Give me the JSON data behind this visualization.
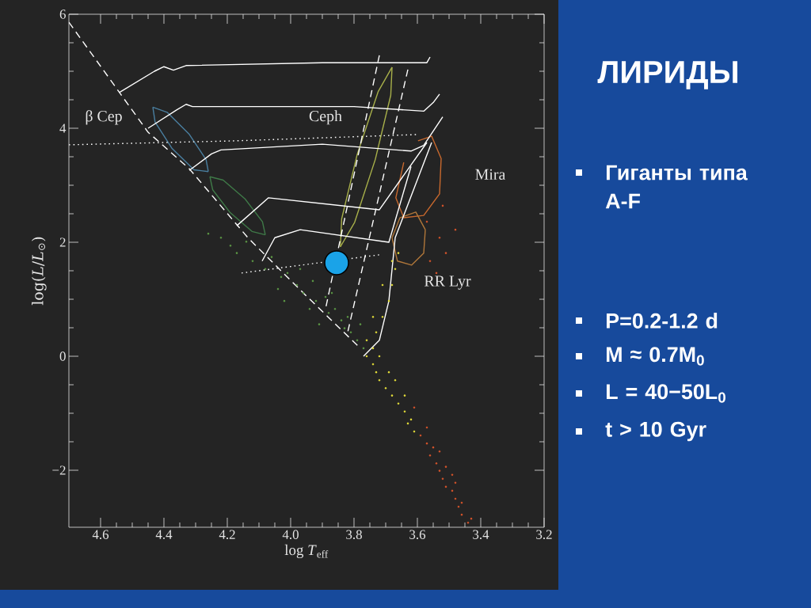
{
  "chart_data": {
    "type": "line",
    "title": "ЛИРИДЫ",
    "xlabel": "log *T*$_{eff}$",
    "ylabel": "log(*L*/*L*$_{⊙}$)",
    "xlim": [
      4.7,
      3.2
    ],
    "ylim": [
      -3,
      6
    ],
    "xticks": [
      4.6,
      4.4,
      4.2,
      {
        "value": 4.0,
        "label": "4.0"
      },
      3.8,
      3.6,
      3.4,
      3.2
    ],
    "yticks": [
      {
        "value": -2,
        "label": "−2"
      },
      0,
      2,
      4,
      6
    ],
    "series": [
      {
        "color": "#4a7fa0",
        "x": [
          4.26,
          4.267,
          4.321,
          4.39,
          4.435
        ],
        "values": [
          3.24,
          3.45,
          3.9,
          4.28,
          4.37
        ]
      },
      {
        "color": "#4a7fa0",
        "x": [
          4.26,
          4.305,
          4.375,
          4.428,
          4.435
        ],
        "values": [
          3.24,
          3.27,
          3.65,
          4.11,
          4.37
        ]
      },
      {
        "color": "#3f7a48",
        "x": [
          4.08,
          4.089,
          4.144,
          4.213,
          4.255
        ],
        "values": [
          2.13,
          2.36,
          2.76,
          3.09,
          3.15
        ]
      },
      {
        "color": "#3f7a48",
        "x": [
          4.08,
          4.122,
          4.191,
          4.246,
          4.255
        ],
        "values": [
          2.13,
          2.19,
          2.52,
          2.92,
          3.15
        ]
      },
      {
        "color": "#a8b04a",
        "x": [
          3.68,
          3.684,
          3.733,
          3.798,
          3.843
        ],
        "values": [
          5.07,
          4.58,
          3.45,
          2.35,
          1.92
        ]
      },
      {
        "color": "#a8b04a",
        "x": [
          3.68,
          3.724,
          3.79,
          3.839,
          3.843
        ],
        "values": [
          5.07,
          4.64,
          3.54,
          2.41,
          1.92
        ]
      },
      {
        "color": "#c8692e",
        "x": [
          3.598,
          3.555,
          3.525,
          3.53,
          3.58,
          3.643,
          3.668,
          3.643
        ],
        "values": [
          3.78,
          3.86,
          3.47,
          2.85,
          2.47,
          2.43,
          2.78,
          3.4
        ]
      },
      {
        "color": "#b0773a",
        "x": [
          3.575,
          3.58,
          3.618,
          3.663,
          3.68
        ],
        "values": [
          2.22,
          1.81,
          1.6,
          1.67,
          2.08
        ]
      },
      {
        "color": "#b0773a",
        "x": [
          3.575,
          3.605,
          3.655,
          3.68
        ],
        "values": [
          2.22,
          2.53,
          2.43,
          2.08
        ]
      },
      {
        "type": "scatter",
        "color": "#5e9a46",
        "x": [
          4.26,
          4.22,
          4.19,
          4.17,
          4.14,
          4.12,
          4.08,
          4.06,
          4.03,
          4.01,
          3.98,
          3.96,
          3.93,
          3.92,
          3.89,
          3.88,
          3.86,
          3.84,
          3.83,
          3.82,
          3.81,
          3.87,
          3.97,
          4.04,
          4.02,
          3.94,
          3.91,
          3.79,
          3.78,
          3.77
        ],
        "values": [
          2.15,
          2.08,
          1.94,
          1.81,
          2.01,
          1.67,
          1.53,
          1.74,
          1.39,
          1.46,
          1.25,
          1.11,
          1.32,
          0.97,
          1.04,
          0.76,
          0.83,
          0.63,
          0.49,
          0.69,
          0.42,
          1.11,
          1.53,
          1.18,
          0.97,
          0.83,
          0.56,
          0.28,
          0.56,
          0.14
        ]
      },
      {
        "type": "scatter",
        "color": "#e8e23a",
        "x": [
          3.76,
          3.74,
          3.73,
          3.72,
          3.7,
          3.68,
          3.66,
          3.64,
          3.62,
          3.74,
          3.72,
          3.69,
          3.67,
          3.73,
          3.71,
          3.69,
          3.68,
          3.67,
          3.66,
          3.68,
          3.71,
          3.74,
          3.76,
          3.64,
          3.61,
          3.63
        ],
        "values": [
          0,
          -0.14,
          -0.28,
          -0.42,
          -0.56,
          -0.69,
          -0.83,
          -0.97,
          -1.11,
          0.14,
          0,
          -0.28,
          -0.42,
          0.42,
          0.69,
          0.97,
          1.25,
          1.53,
          1.81,
          1.67,
          1.25,
          0.69,
          0.28,
          -0.69,
          -1.32,
          -1.18
        ]
      },
      {
        "type": "scatter",
        "color": "#d9552b",
        "x": [
          3.59,
          3.57,
          3.56,
          3.54,
          3.53,
          3.52,
          3.51,
          3.49,
          3.48,
          3.47,
          3.46,
          3.44,
          3.55,
          3.51,
          3.48,
          3.53,
          3.49,
          3.46,
          3.43,
          3.57,
          3.53,
          3.51,
          3.48,
          3.56,
          3.52,
          3.54,
          3.61,
          3.57
        ],
        "values": [
          -1.39,
          -1.53,
          -1.74,
          -1.88,
          -2.01,
          -2.15,
          -2.29,
          -2.36,
          -2.5,
          -2.64,
          -2.78,
          -2.92,
          -1.6,
          -1.94,
          -2.22,
          -1.67,
          -2.08,
          -2.57,
          -2.85,
          2.36,
          2.08,
          1.81,
          2.22,
          1.67,
          2.64,
          1.46,
          -0.9,
          -1.25
        ]
      },
      {
        "color": "#ffffff",
        "line_style": "dashed",
        "x": [
          4.7,
          4.45,
          4.32,
          4.135,
          3.96,
          3.78
        ],
        "values": [
          5.86,
          3.93,
          3.29,
          2.08,
          1.11,
          0.14
        ]
      },
      {
        "color": "#ffffff",
        "line_style": "dashed",
        "x": [
          3.72,
          3.89
        ],
        "values": [
          5.28,
          0.83
        ]
      },
      {
        "color": "#ffffff",
        "line_style": "dashed",
        "x": [
          3.63,
          3.82
        ],
        "values": [
          5.03,
          0.42
        ]
      },
      {
        "color": "#ffffff",
        "line_style": "dotted",
        "x": [
          4.7,
          4.17,
          3.6
        ],
        "values": [
          3.71,
          3.78,
          3.89
        ]
      },
      {
        "color": "#ffffff",
        "line_style": "dotted",
        "x": [
          4.155,
          3.72
        ],
        "values": [
          1.46,
          1.78
        ]
      },
      {
        "color": "#ffffff",
        "x": [
          4.54,
          4.43,
          4.4,
          4.37,
          4.33,
          3.9,
          3.57,
          3.56
        ],
        "values": [
          4.63,
          5.0,
          5.08,
          5.02,
          5.1,
          5.15,
          5.15,
          5.25
        ]
      },
      {
        "color": "#ffffff",
        "x": [
          4.45,
          4.36,
          4.33,
          4.31,
          3.8,
          3.58,
          3.55,
          3.53
        ],
        "values": [
          4.0,
          4.32,
          4.42,
          4.38,
          4.38,
          4.3,
          4.45,
          4.6
        ]
      },
      {
        "color": "#ffffff",
        "x": [
          4.32,
          4.25,
          4.22,
          3.9,
          3.62,
          3.58,
          3.52
        ],
        "values": [
          3.26,
          3.55,
          3.62,
          3.72,
          3.6,
          3.7,
          4.2
        ]
      },
      {
        "color": "#ffffff",
        "x": [
          4.17,
          4.07,
          3.72,
          3.57
        ],
        "values": [
          2.29,
          2.78,
          2.57,
          3.75
        ]
      },
      {
        "color": "#ffffff",
        "x": [
          4.09,
          4.05,
          3.97,
          3.69,
          3.62
        ],
        "values": [
          1.67,
          2.08,
          2.22,
          2.0,
          3.33
        ]
      },
      {
        "color": "#ffffff",
        "x": [
          3.77,
          3.72,
          3.69,
          3.67,
          3.555
        ],
        "values": [
          0,
          0.28,
          0.97,
          2.08,
          3.75
        ]
      },
      {
        "type": "bubble",
        "color": "#1aa3e8",
        "x": [
          3.855
        ],
        "values": [
          1.64
        ],
        "sizes": [
          1
        ]
      }
    ],
    "annotations": [
      "β Cep",
      "Ceph",
      "Mira",
      "RR Lyr",
      "Гиганты типа A-F",
      "P=0.2-1.2 d",
      "M ≈ 0.7M$_{0}$",
      "L = 40−50L$_{0}$",
      "t > 10 Gyr"
    ]
  }
}
